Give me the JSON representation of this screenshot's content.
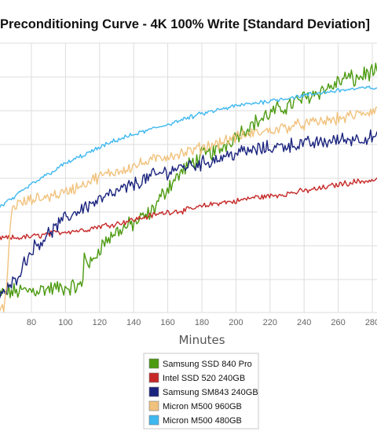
{
  "chart_data": {
    "type": "line",
    "title": "Preconditioning Curve - 4K 100% Write [Standard Deviation]",
    "xlabel": "Minutes",
    "ylabel": "",
    "xlim": [
      60,
      285
    ],
    "ylim": [
      0,
      100
    ],
    "x_ticks": [
      80,
      100,
      120,
      140,
      160,
      180,
      200,
      220,
      240,
      260,
      280
    ],
    "grid": true,
    "legend_position": "bottom",
    "series": [
      {
        "name": "Samsung SSD 840 Pro",
        "color": "#4c9a10",
        "points": [
          [
            60,
            7
          ],
          [
            70,
            8
          ],
          [
            80,
            8.5
          ],
          [
            90,
            9
          ],
          [
            100,
            9.5
          ],
          [
            110,
            10
          ],
          [
            111,
            22
          ],
          [
            115,
            18
          ],
          [
            120,
            25
          ],
          [
            130,
            31
          ],
          [
            140,
            34
          ],
          [
            150,
            38
          ],
          [
            160,
            48
          ],
          [
            170,
            55
          ],
          [
            180,
            60
          ],
          [
            190,
            62
          ],
          [
            200,
            68
          ],
          [
            210,
            72
          ],
          [
            220,
            76
          ],
          [
            230,
            79
          ],
          [
            240,
            82
          ],
          [
            250,
            85
          ],
          [
            255,
            86
          ],
          [
            260,
            88
          ],
          [
            265,
            90
          ],
          [
            270,
            89
          ],
          [
            275,
            91
          ],
          [
            280,
            92
          ],
          [
            285,
            91
          ]
        ]
      },
      {
        "name": "Intel SSD 520 240GB",
        "color": "#c62828",
        "points": [
          [
            60,
            28.5
          ],
          [
            70,
            28.5
          ],
          [
            80,
            29
          ],
          [
            90,
            30
          ],
          [
            100,
            31
          ],
          [
            110,
            31.5
          ],
          [
            120,
            33
          ],
          [
            130,
            34
          ],
          [
            140,
            35.5
          ],
          [
            150,
            37
          ],
          [
            160,
            38.5
          ],
          [
            170,
            39
          ],
          [
            180,
            40.5
          ],
          [
            190,
            42
          ],
          [
            200,
            42.5
          ],
          [
            210,
            44
          ],
          [
            220,
            44.5
          ],
          [
            230,
            45.5
          ],
          [
            240,
            46.5
          ],
          [
            250,
            47.5
          ],
          [
            260,
            49
          ],
          [
            270,
            50
          ],
          [
            280,
            50.5
          ],
          [
            285,
            51
          ]
        ]
      },
      {
        "name": "Samsung SM843 240GB",
        "color": "#1a237e",
        "points": [
          [
            60,
            7
          ],
          [
            65,
            8
          ],
          [
            70,
            12
          ],
          [
            75,
            18
          ],
          [
            80,
            24
          ],
          [
            90,
            30
          ],
          [
            100,
            36
          ],
          [
            110,
            40
          ],
          [
            120,
            43
          ],
          [
            130,
            46
          ],
          [
            140,
            49
          ],
          [
            150,
            52
          ],
          [
            160,
            54
          ],
          [
            170,
            56
          ],
          [
            180,
            57
          ],
          [
            190,
            59
          ],
          [
            200,
            61
          ],
          [
            210,
            62
          ],
          [
            220,
            63
          ],
          [
            230,
            64
          ],
          [
            240,
            64.5
          ],
          [
            250,
            65
          ],
          [
            260,
            66
          ],
          [
            270,
            66.5
          ],
          [
            280,
            67
          ],
          [
            285,
            66
          ]
        ]
      },
      {
        "name": "Micron M500 960GB",
        "color": "#f1c27d",
        "points": [
          [
            60,
            1
          ],
          [
            64,
            1
          ],
          [
            66,
            15
          ],
          [
            68,
            38
          ],
          [
            70,
            41
          ],
          [
            80,
            43
          ],
          [
            90,
            44.5
          ],
          [
            100,
            46
          ],
          [
            110,
            49
          ],
          [
            120,
            52
          ],
          [
            130,
            54
          ],
          [
            140,
            56
          ],
          [
            150,
            58
          ],
          [
            160,
            60
          ],
          [
            170,
            61
          ],
          [
            180,
            63
          ],
          [
            190,
            65
          ],
          [
            200,
            67
          ],
          [
            210,
            68.5
          ],
          [
            220,
            69.5
          ],
          [
            230,
            71
          ],
          [
            240,
            72
          ],
          [
            250,
            73
          ],
          [
            260,
            74
          ],
          [
            270,
            75.5
          ],
          [
            280,
            77
          ],
          [
            285,
            78
          ]
        ]
      },
      {
        "name": "Micron M500 480GB",
        "color": "#3fb8f0",
        "points": [
          [
            60,
            40
          ],
          [
            70,
            44
          ],
          [
            80,
            49
          ],
          [
            90,
            53
          ],
          [
            100,
            57
          ],
          [
            110,
            60
          ],
          [
            120,
            63
          ],
          [
            130,
            66
          ],
          [
            140,
            68
          ],
          [
            150,
            70
          ],
          [
            160,
            72
          ],
          [
            170,
            74
          ],
          [
            180,
            76
          ],
          [
            190,
            77.5
          ],
          [
            200,
            79
          ],
          [
            210,
            80
          ],
          [
            220,
            81
          ],
          [
            230,
            82
          ],
          [
            240,
            83
          ],
          [
            250,
            84
          ],
          [
            260,
            85
          ],
          [
            270,
            85.5
          ],
          [
            280,
            86
          ],
          [
            285,
            86
          ]
        ]
      }
    ]
  }
}
